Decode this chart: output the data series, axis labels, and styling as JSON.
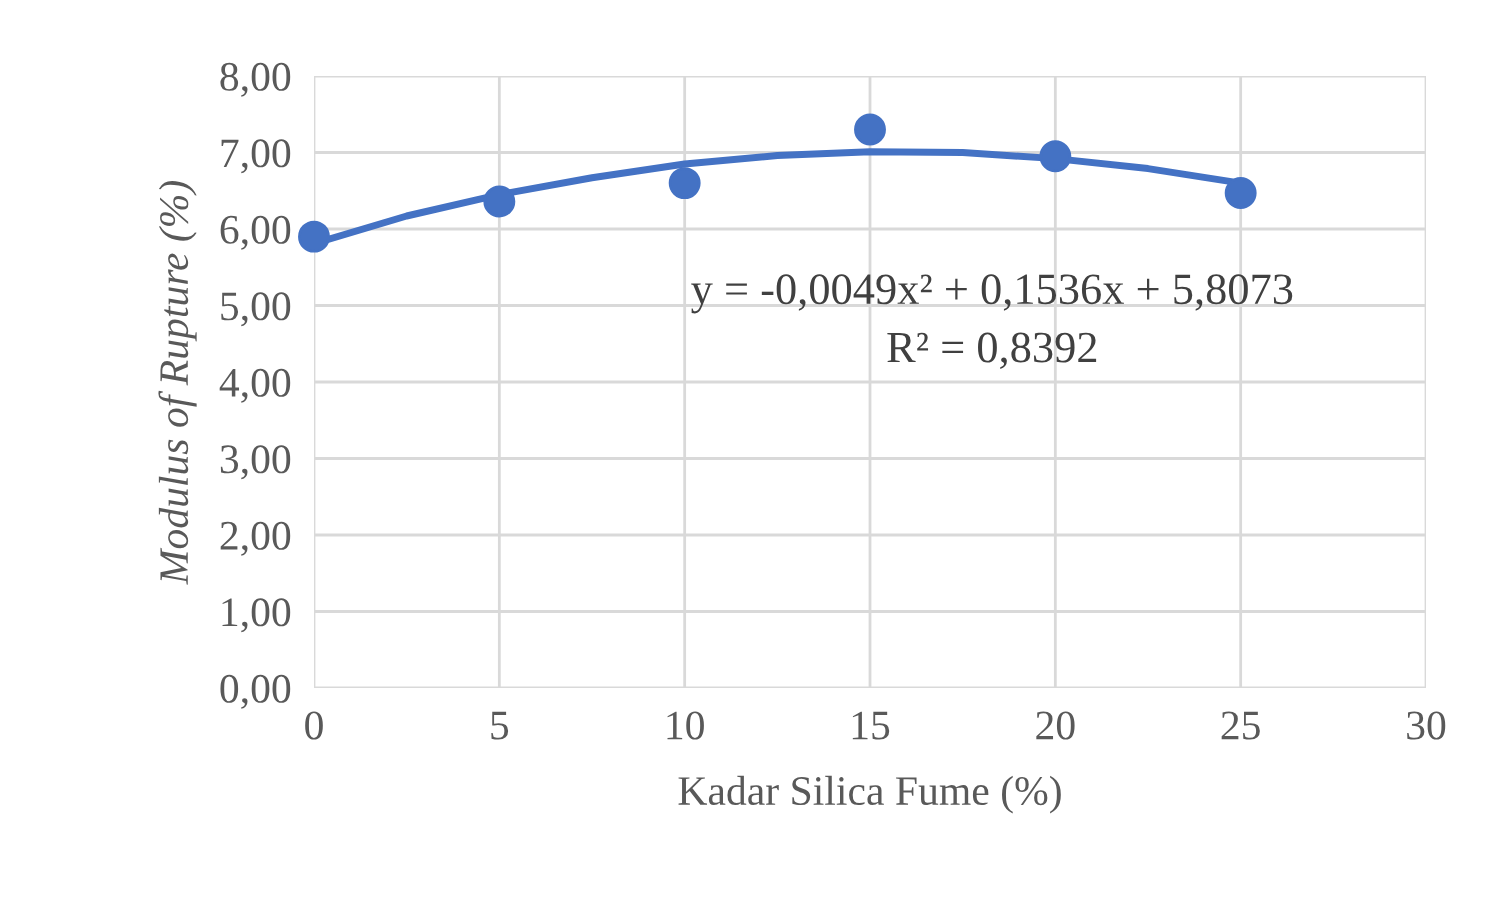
{
  "chart_data": {
    "type": "scatter",
    "xlabel": "Kadar Silica Fume (%)",
    "ylabel": "Modulus of Rupture (%)",
    "series": [
      {
        "color": "#4472c4",
        "marker": "circle",
        "x": [
          0,
          5,
          10,
          15,
          20,
          25
        ],
        "values": [
          5.9,
          6.36,
          6.6,
          7.3,
          6.95,
          6.47
        ]
      },
      {
        "type": "line",
        "color": "#4472c4",
        "marker": "none",
        "line_style": "solid",
        "x": [
          0,
          2.5,
          5,
          7.5,
          10,
          12.5,
          15,
          17.5,
          20,
          22.5,
          25
        ],
        "values": [
          5.81,
          6.17,
          6.45,
          6.67,
          6.85,
          6.96,
          7.01,
          7.0,
          6.92,
          6.79,
          6.6
        ]
      }
    ],
    "xlim": [
      0,
      30
    ],
    "xticks": [
      0,
      5,
      10,
      15,
      20,
      25,
      30
    ],
    "ylim": [
      0,
      8
    ],
    "yticks": [
      {
        "value": 0,
        "label": "0,00"
      },
      {
        "value": 1,
        "label": "1,00"
      },
      {
        "value": 2,
        "label": "2,00"
      },
      {
        "value": 3,
        "label": "3,00"
      },
      {
        "value": 4,
        "label": "4,00"
      },
      {
        "value": 5,
        "label": "5,00"
      },
      {
        "value": 6,
        "label": "6,00"
      },
      {
        "value": 7,
        "label": "7,00"
      },
      {
        "value": 8,
        "label": "8,00"
      }
    ],
    "grid": true,
    "annotations": [
      "y = -0,0049x² + 0,1536x + 5,8073",
      "R² = 0,8392"
    ]
  }
}
